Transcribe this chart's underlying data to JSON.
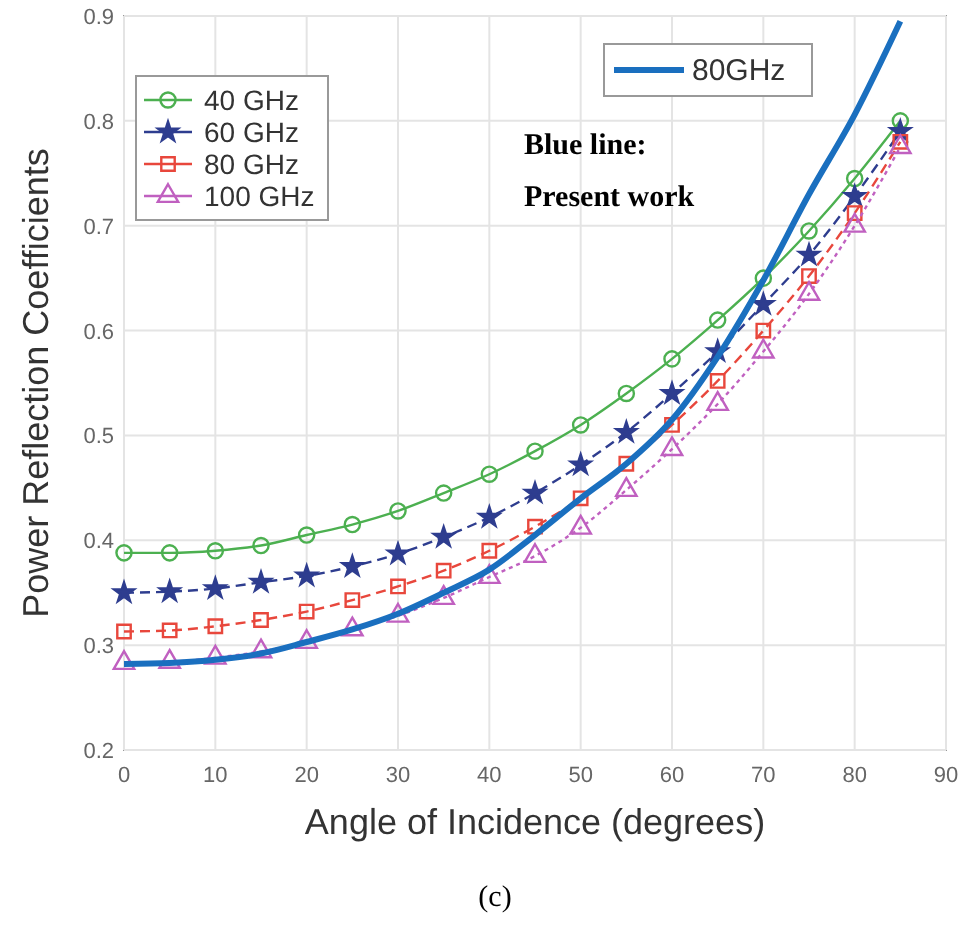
{
  "chart_data": {
    "type": "line",
    "xlabel": "Angle of Incidence (degrees)",
    "ylabel": "Power Reflection Coefficients",
    "x": [
      0,
      5,
      10,
      15,
      20,
      25,
      30,
      35,
      40,
      45,
      50,
      55,
      60,
      65,
      70,
      75,
      80,
      85
    ],
    "series": [
      {
        "name": "40 GHz",
        "color": "#4cb050",
        "marker": "circle",
        "line_style": "solid",
        "values": [
          0.388,
          0.388,
          0.39,
          0.395,
          0.405,
          0.415,
          0.428,
          0.445,
          0.463,
          0.485,
          0.51,
          0.54,
          0.573,
          0.61,
          0.65,
          0.695,
          0.745,
          0.8
        ]
      },
      {
        "name": "60 GHz",
        "color": "#2e3d8f",
        "marker": "star",
        "line_style": "dashed",
        "values": [
          0.35,
          0.351,
          0.354,
          0.36,
          0.366,
          0.375,
          0.387,
          0.403,
          0.422,
          0.445,
          0.472,
          0.503,
          0.54,
          0.58,
          0.625,
          0.672,
          0.728,
          0.79
        ]
      },
      {
        "name": "80 GHz",
        "color": "#e8473c",
        "marker": "square",
        "line_style": "dashed",
        "values": [
          0.313,
          0.314,
          0.318,
          0.324,
          0.332,
          0.343,
          0.356,
          0.371,
          0.39,
          0.413,
          0.44,
          0.473,
          0.51,
          0.552,
          0.6,
          0.652,
          0.712,
          0.78
        ]
      },
      {
        "name": "100 GHz",
        "color": "#c060c0",
        "marker": "triangle",
        "line_style": "dotted",
        "values": [
          0.283,
          0.284,
          0.288,
          0.294,
          0.303,
          0.315,
          0.328,
          0.345,
          0.365,
          0.385,
          0.412,
          0.448,
          0.487,
          0.53,
          0.58,
          0.635,
          0.7,
          0.775
        ]
      },
      {
        "name": "80GHz",
        "color": "#1a6fbf",
        "marker": "none",
        "line_style": "solid",
        "values": [
          0.282,
          0.283,
          0.286,
          0.292,
          0.303,
          0.315,
          0.33,
          0.35,
          0.372,
          0.405,
          0.44,
          0.473,
          0.515,
          0.575,
          0.648,
          0.73,
          0.806,
          0.895
        ]
      }
    ],
    "xlim": [
      0,
      90
    ],
    "xticks": [
      0,
      10,
      20,
      30,
      40,
      50,
      60,
      70,
      80,
      90
    ],
    "ylim": [
      0.2,
      0.9
    ],
    "yticks": [
      0.2,
      0.3,
      0.4,
      0.5,
      0.6,
      0.7,
      0.8,
      0.9
    ],
    "grid": true,
    "legend": "top left",
    "annotations": [
      "Blue line:\nPresent work",
      "(c)"
    ]
  }
}
